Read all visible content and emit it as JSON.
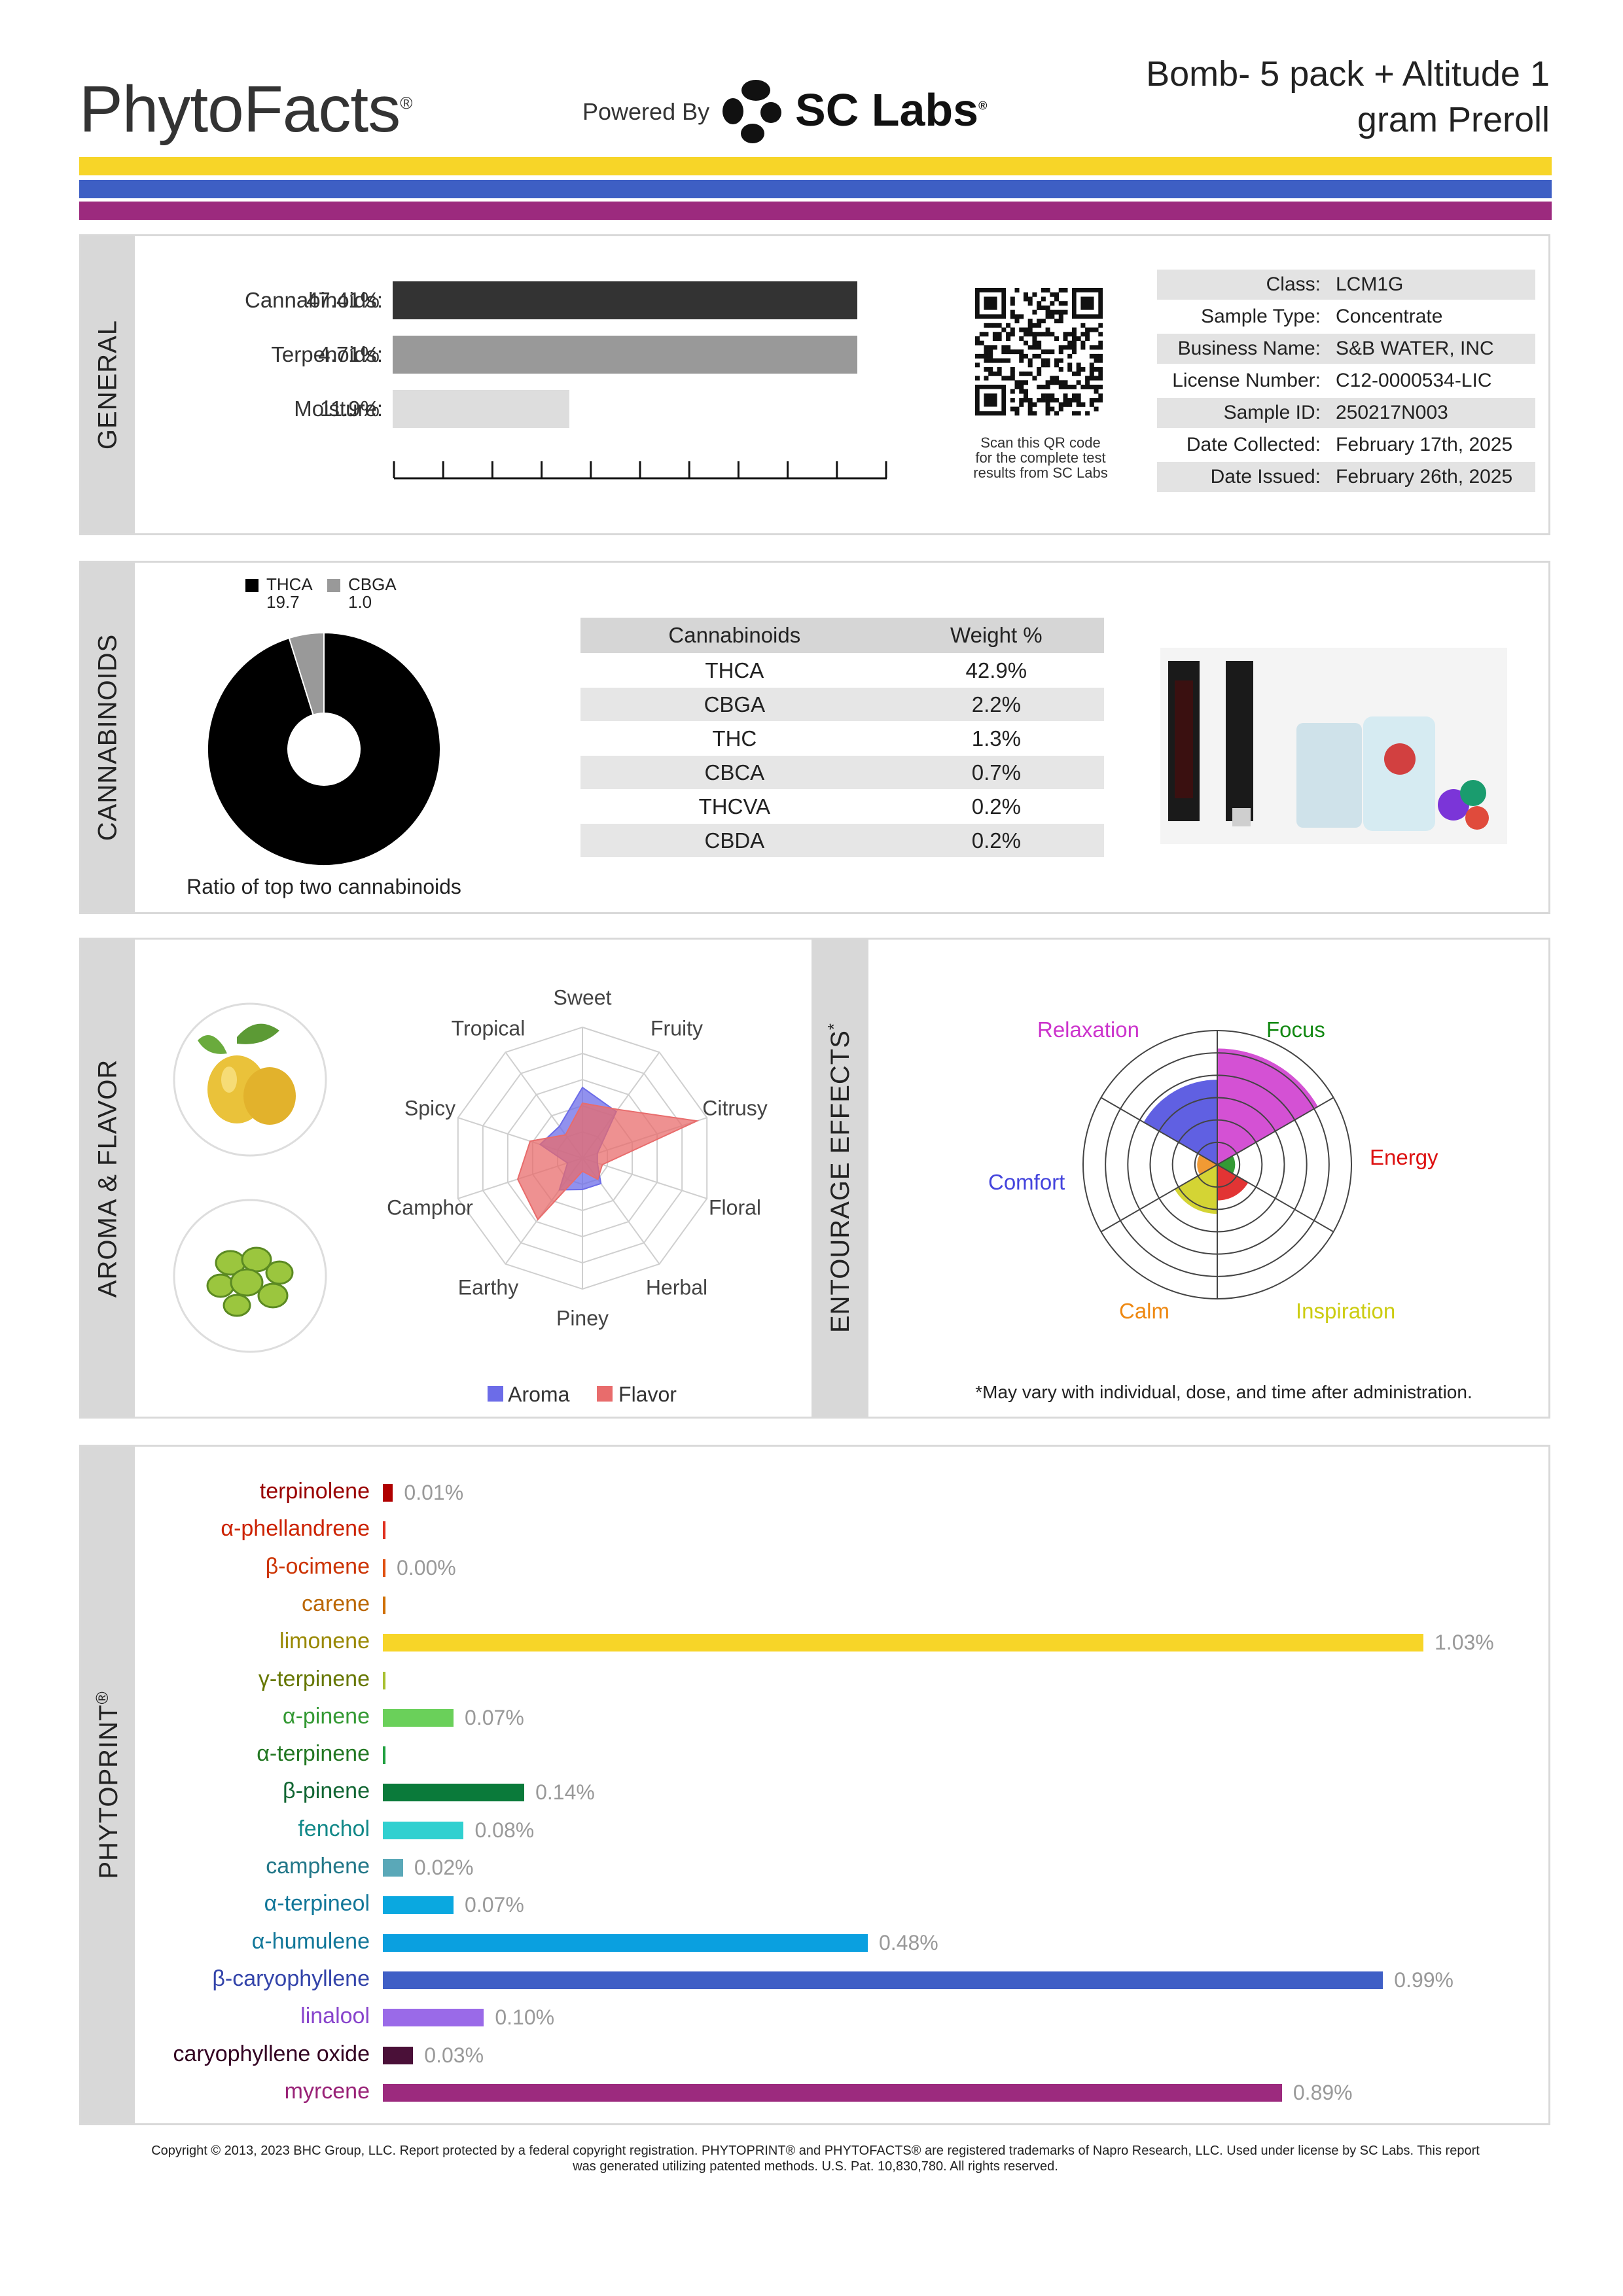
{
  "header": {
    "logo": "PhytoFacts",
    "logo_mark": "®",
    "powered_by": "Powered By",
    "lab_name": "SC Labs",
    "lab_mark": "®",
    "product_title_line1": "Bomb- 5 pack + Altitude 1",
    "product_title_line2": "gram Preroll",
    "stripe_colors": [
      "#f7d528",
      "#3e5fc4",
      "#9c2a7e"
    ]
  },
  "general": {
    "section_label": "GENERAL",
    "metrics": [
      {
        "label": "Cannabinoids:",
        "value": "47.41%",
        "level": 1.0,
        "color": "#333333"
      },
      {
        "label": "Terpenoids:",
        "value": "4.71%",
        "level": 1.0,
        "color": "#999999"
      },
      {
        "label": "Moisture:",
        "value": "11.9%",
        "level": 0.38,
        "color": "#dddddd"
      }
    ],
    "qr_caption_1": "Scan this QR code",
    "qr_caption_2": "for the complete test",
    "qr_caption_3": "results from SC Labs",
    "info": [
      {
        "key": "Class:",
        "value": "LCM1G"
      },
      {
        "key": "Sample Type:",
        "value": "Concentrate"
      },
      {
        "key": "Business Name:",
        "value": "S&B WATER, INC"
      },
      {
        "key": "License Number:",
        "value": "C12-0000534-LIC"
      },
      {
        "key": "Sample ID:",
        "value": "250217N003"
      },
      {
        "key": "Date Collected:",
        "value": "February 17th, 2025"
      },
      {
        "key": "Date Issued:",
        "value": "February 26th, 2025"
      }
    ]
  },
  "cannabinoids": {
    "section_label": "CANNABINOIDS",
    "donut_caption": "Ratio of top two cannabinoids",
    "legend": [
      {
        "name": "THCA",
        "value": "19.7",
        "color": "#000000"
      },
      {
        "name": "CBGA",
        "value": "1.0",
        "color": "#999999"
      }
    ],
    "table_headers": [
      "Cannabinoids",
      "Weight %"
    ],
    "table_rows": [
      [
        "THCA",
        "42.9%"
      ],
      [
        "CBGA",
        "2.2%"
      ],
      [
        "THC",
        "1.3%"
      ],
      [
        "CBCA",
        "0.7%"
      ],
      [
        "THCVA",
        "0.2%"
      ],
      [
        "CBDA",
        "0.2%"
      ]
    ]
  },
  "aroma": {
    "section_label": "AROMA & FLAVOR",
    "axes": [
      "Sweet",
      "Fruity",
      "Citrusy",
      "Floral",
      "Herbal",
      "Piney",
      "Earthy",
      "Camphor",
      "Spicy",
      "Tropical"
    ],
    "legend_aroma": "Aroma",
    "legend_flavor": "Flavor",
    "aroma_color": "#6c6ce8",
    "flavor_color": "#e86c6c"
  },
  "entourage": {
    "section_label": "ENTOURAGE EFFECTS",
    "section_mark": "*",
    "effects": [
      {
        "name": "Relaxation",
        "color": "#cc33cc"
      },
      {
        "name": "Focus",
        "color": "#118811"
      },
      {
        "name": "Energy",
        "color": "#dd1111"
      },
      {
        "name": "Comfort",
        "color": "#4444dd"
      },
      {
        "name": "Calm",
        "color": "#ee8811"
      },
      {
        "name": "Inspiration",
        "color": "#cccc11"
      }
    ],
    "footnote": "*May vary with individual, dose, and time after administration."
  },
  "phytoprint": {
    "section_label": "PHYTOPRINT",
    "section_mark": "®"
  },
  "chart_data": [
    {
      "type": "pie",
      "title": "",
      "categories": [
        "THCA",
        "CBGA"
      ],
      "values": [
        19.7,
        1.0
      ],
      "colors": [
        "#000000",
        "#999999"
      ]
    },
    {
      "type": "radar",
      "categories": [
        "Sweet",
        "Fruity",
        "Citrusy",
        "Floral",
        "Herbal",
        "Piney",
        "Earthy",
        "Camphor",
        "Spicy",
        "Tropical"
      ],
      "rmax": 5,
      "series": [
        {
          "name": "Aroma",
          "values": [
            2.7,
            2.2,
            0.6,
            0.6,
            1.2,
            1.2,
            1.5,
            0.6,
            1.7,
            1.5
          ]
        },
        {
          "name": "Flavor",
          "values": [
            2.1,
            2.3,
            4.6,
            0.8,
            1.0,
            0.5,
            2.9,
            2.6,
            2.1,
            1.1
          ]
        }
      ]
    },
    {
      "type": "polar-area",
      "categories": [
        "Relaxation",
        "Focus",
        "Energy",
        "Inspiration",
        "Calm",
        "Comfort"
      ],
      "rmax": 6,
      "values": [
        5.2,
        0.8,
        1.6,
        2.2,
        0.9,
        3.8
      ]
    },
    {
      "type": "bar",
      "orientation": "horizontal",
      "categories": [
        "terpinolene",
        "α-phellandrene",
        "β-ocimene",
        "carene",
        "limonene",
        "γ-terpinene",
        "α-pinene",
        "α-terpinene",
        "β-pinene",
        "fenchol",
        "camphene",
        "α-terpineol",
        "α-humulene",
        "β-caryophyllene",
        "linalool",
        "caryophyllene oxide",
        "myrcene"
      ],
      "values": [
        0.01,
        0.0,
        0.0,
        0.0,
        1.03,
        0.0,
        0.07,
        0.0,
        0.14,
        0.08,
        0.02,
        0.07,
        0.48,
        0.99,
        0.1,
        0.03,
        0.89
      ],
      "value_labels": [
        "0.01%",
        "",
        "0.00%",
        "",
        "1.03%",
        "",
        "0.07%",
        "",
        "0.14%",
        "0.08%",
        "0.02%",
        "0.07%",
        "0.48%",
        "0.99%",
        "0.10%",
        "0.03%",
        "0.89%"
      ],
      "colors": [
        "#b00000",
        "#e03020",
        "#e05010",
        "#d07000",
        "#f7d528",
        "#a8c030",
        "#6ad05a",
        "#20a040",
        "#0a7a3a",
        "#30d0d0",
        "#5aa8b8",
        "#0aa8e0",
        "#0aa0e0",
        "#3f5fc6",
        "#9a6ae8",
        "#4a1038",
        "#9c2a7e"
      ],
      "name_colors": [
        "#9a0000",
        "#cc2200",
        "#cc3300",
        "#bb6600",
        "#998800",
        "#667700",
        "#339933",
        "#227722",
        "#116633",
        "#118888",
        "#227788",
        "#117799",
        "#117799",
        "#3344aa",
        "#8844cc",
        "#330022",
        "#992277"
      ],
      "xlim": [
        0,
        1.03
      ]
    }
  ]
}
